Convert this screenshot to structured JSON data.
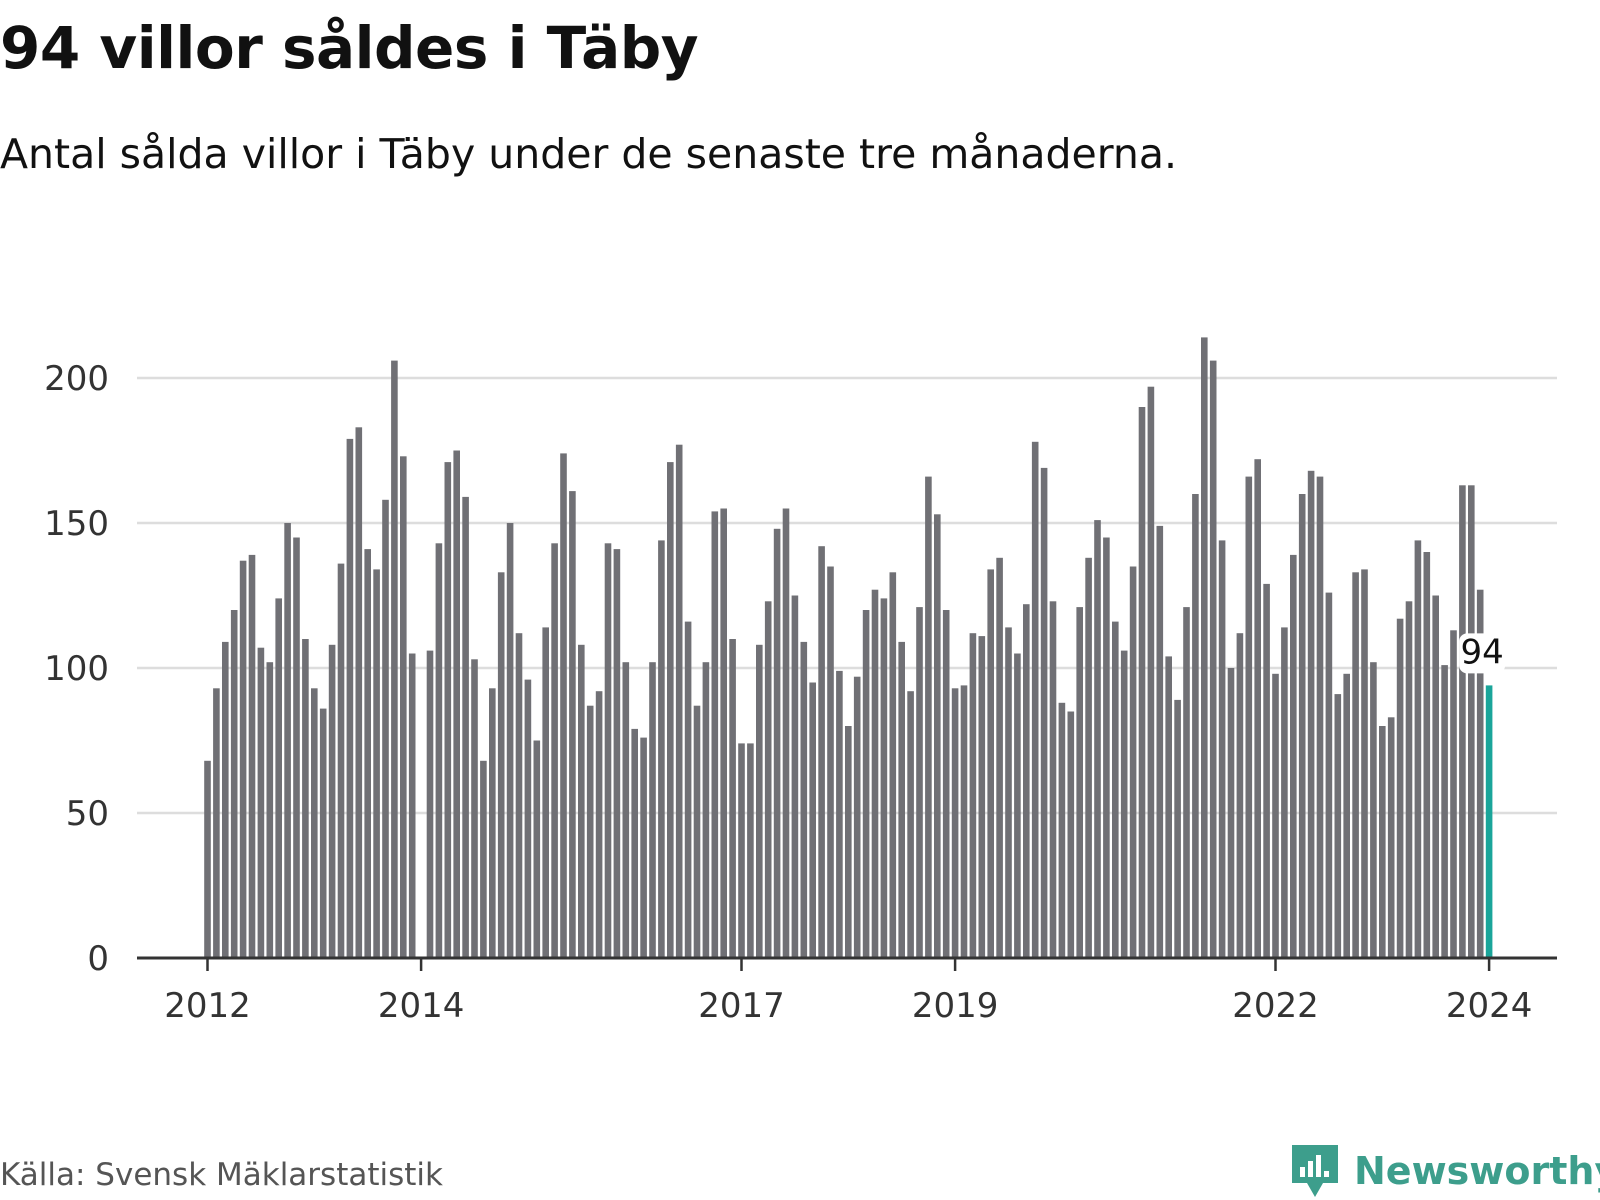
{
  "colors": {
    "bar": "#707075",
    "highlight": "#1aa59a",
    "grid": "#dddddd",
    "axis": "#333333",
    "brand": "#3d9e8c"
  },
  "brand": {
    "name": "Newsworthy",
    "icon": "newsworthy-logo-icon"
  },
  "source": "Källa: Svensk Mäklarstatistik",
  "chart_data": {
    "type": "bar",
    "title": "94 villor såldes i Täby",
    "subtitle": "Antal sålda villor i Täby under de senaste tre månaderna.",
    "xlabel": "",
    "ylabel": "",
    "ylim": [
      0,
      220
    ],
    "yticks": [
      0,
      50,
      100,
      150,
      200
    ],
    "xticks": [
      {
        "label": "2012",
        "index": 0
      },
      {
        "label": "2014",
        "index": 24
      },
      {
        "label": "2017",
        "index": 60
      },
      {
        "label": "2019",
        "index": 84
      },
      {
        "label": "2022",
        "index": 120
      },
      {
        "label": "2024",
        "index": 144
      }
    ],
    "grid": true,
    "highlight_index": 144,
    "highlight_label": "94",
    "values": [
      68,
      93,
      109,
      120,
      137,
      139,
      107,
      102,
      124,
      150,
      145,
      110,
      93,
      86,
      108,
      136,
      179,
      183,
      141,
      134,
      158,
      206,
      173,
      105,
      null,
      106,
      143,
      171,
      175,
      159,
      103,
      68,
      93,
      133,
      150,
      112,
      96,
      75,
      114,
      143,
      174,
      161,
      108,
      87,
      92,
      143,
      141,
      102,
      79,
      76,
      102,
      144,
      171,
      177,
      116,
      87,
      102,
      154,
      155,
      110,
      74,
      74,
      108,
      123,
      148,
      155,
      125,
      109,
      95,
      142,
      135,
      99,
      80,
      97,
      120,
      127,
      124,
      133,
      109,
      92,
      121,
      166,
      153,
      120,
      93,
      94,
      112,
      111,
      134,
      138,
      114,
      105,
      122,
      178,
      169,
      123,
      88,
      85,
      121,
      138,
      151,
      145,
      116,
      106,
      135,
      190,
      197,
      149,
      104,
      89,
      121,
      160,
      214,
      206,
      144,
      100,
      112,
      166,
      172,
      129,
      98,
      114,
      139,
      160,
      168,
      166,
      126,
      91,
      98,
      133,
      134,
      102,
      80,
      83,
      117,
      123,
      144,
      140,
      125,
      101,
      113,
      163,
      163,
      127,
      94
    ]
  }
}
